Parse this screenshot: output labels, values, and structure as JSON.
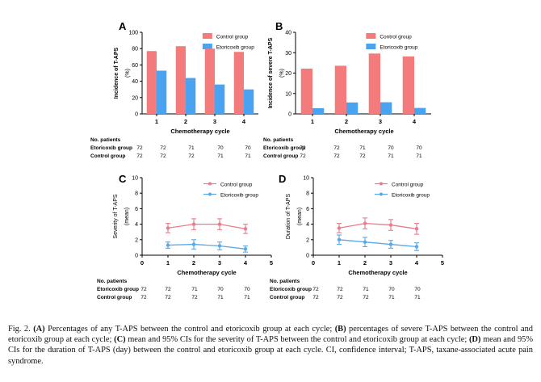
{
  "colors": {
    "control": "#f47b7b",
    "etoricoxib": "#4aa3f0",
    "axis": "#000000",
    "error_control": "#e87c8a",
    "error_etoricoxib": "#5aa8e6"
  },
  "chart_data": [
    {
      "panel": "A",
      "type": "bar",
      "categories": [
        "1",
        "2",
        "3",
        "4"
      ],
      "series": [
        {
          "name": "Control group",
          "values": [
            77,
            83,
            80,
            76
          ]
        },
        {
          "name": "Etoricoxib group",
          "values": [
            53,
            44,
            36,
            30
          ]
        }
      ],
      "ylabel_lines": [
        "Incidence of T-APS",
        "(%)"
      ],
      "xlabel": "Chemotherapy cycle",
      "ylim": [
        0,
        100
      ],
      "yticks": [
        0,
        20,
        40,
        60,
        80,
        100
      ],
      "legend": [
        "Control group",
        "Etoricoxib group"
      ],
      "legend_position": "top-right"
    },
    {
      "panel": "B",
      "type": "bar",
      "categories": [
        "1",
        "2",
        "3",
        "4"
      ],
      "series": [
        {
          "name": "Control group",
          "values": [
            22.2,
            23.6,
            29.6,
            28.2
          ]
        },
        {
          "name": "Etoricoxib group",
          "values": [
            2.8,
            5.6,
            5.7,
            2.9
          ]
        }
      ],
      "ylabel_lines": [
        "Incidence of severe T-APS",
        "(%)"
      ],
      "xlabel": "Chemotherapy cycle",
      "ylim": [
        0,
        40
      ],
      "yticks": [
        0,
        10,
        20,
        30,
        40
      ],
      "legend": [
        "Control group",
        "Etoricoxib group"
      ],
      "legend_position": "top-right"
    },
    {
      "panel": "C",
      "type": "line",
      "x": [
        1,
        2,
        3,
        4
      ],
      "series": [
        {
          "name": "Control group",
          "values": [
            3.5,
            4.0,
            4.0,
            3.4
          ],
          "ci_low": [
            2.9,
            3.3,
            3.3,
            2.8
          ],
          "ci_high": [
            4.1,
            4.7,
            4.7,
            4.0
          ]
        },
        {
          "name": "Etoricoxib group",
          "values": [
            1.3,
            1.4,
            1.2,
            0.8
          ],
          "ci_low": [
            0.9,
            0.8,
            0.7,
            0.4
          ],
          "ci_high": [
            1.7,
            2.0,
            1.7,
            1.2
          ]
        }
      ],
      "ylabel_lines": [
        "Severity of T-APS",
        "(mean)"
      ],
      "xlabel": "Chemotherapy cycle",
      "xlim": [
        0,
        5
      ],
      "xticks": [
        0,
        1,
        2,
        3,
        4,
        5
      ],
      "ylim": [
        0,
        10
      ],
      "yticks": [
        0,
        2,
        4,
        6,
        8,
        10
      ],
      "legend": [
        "Control group",
        "Etoricoxib group"
      ],
      "legend_position": "top-right"
    },
    {
      "panel": "D",
      "type": "line",
      "x": [
        1,
        2,
        3,
        4
      ],
      "series": [
        {
          "name": "Control group",
          "values": [
            3.5,
            4.1,
            3.9,
            3.4
          ],
          "ci_low": [
            2.9,
            3.4,
            3.2,
            2.7
          ],
          "ci_high": [
            4.1,
            4.8,
            4.6,
            4.1
          ]
        },
        {
          "name": "Etoricoxib group",
          "values": [
            2.0,
            1.7,
            1.4,
            1.1
          ],
          "ci_low": [
            1.4,
            1.1,
            0.9,
            0.6
          ],
          "ci_high": [
            2.6,
            2.3,
            1.9,
            1.6
          ]
        }
      ],
      "ylabel_lines": [
        "Duration of T-APS",
        "(mean)"
      ],
      "xlabel": "Chemotherapy cycle",
      "xlim": [
        0,
        5
      ],
      "xticks": [
        0,
        1,
        2,
        3,
        4,
        5
      ],
      "ylim": [
        0,
        10
      ],
      "yticks": [
        0,
        2,
        4,
        6,
        8,
        10
      ],
      "legend": [
        "Control group",
        "Etoricoxib group"
      ],
      "legend_position": "top-right"
    }
  ],
  "patients_table": {
    "title": "No. patients",
    "rows": [
      {
        "label": "Etoricoxib group",
        "first": "72",
        "values": [
          "72",
          "71",
          "70",
          "70"
        ]
      },
      {
        "label": "Control group",
        "first": "72",
        "values": [
          "72",
          "72",
          "71",
          "71"
        ]
      }
    ]
  },
  "caption": {
    "fig_label": "Fig. 2.",
    "parts": [
      {
        "letter": "(A)",
        "text": " Percentages of any T-APS between the control and etoricoxib group at each cycle; "
      },
      {
        "letter": "(B)",
        "text": " percentages of severe T-APS between the control and etoricoxib group at each cycle; "
      },
      {
        "letter": "(C)",
        "text": " mean and 95% CIs for the severity of T-APS between the control and etoricoxib group at each cycle; "
      },
      {
        "letter": "(D)",
        "text": " mean and 95% CIs for the duration of T-APS (day) between the control and etoricoxib group at each cycle. CI, confidence interval; T-APS, taxane-associated acute pain syndrome."
      }
    ]
  }
}
